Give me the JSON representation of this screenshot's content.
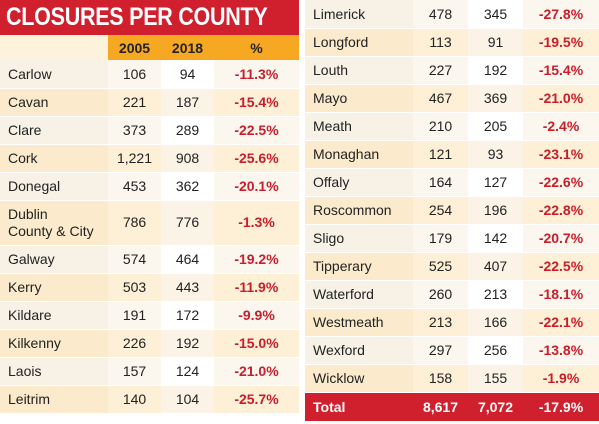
{
  "title": "CLOSURES PER COUNTY",
  "columns": [
    "",
    "2005",
    "2018",
    "%"
  ],
  "left_rows": [
    {
      "county": "Carlow",
      "y2005": "106",
      "y2018": "94",
      "pct": "-11.3%"
    },
    {
      "county": "Cavan",
      "y2005": "221",
      "y2018": "187",
      "pct": "-15.4%"
    },
    {
      "county": "Clare",
      "y2005": "373",
      "y2018": "289",
      "pct": "-22.5%"
    },
    {
      "county": "Cork",
      "y2005": "1,221",
      "y2018": "908",
      "pct": "-25.6%"
    },
    {
      "county": "Donegal",
      "y2005": "453",
      "y2018": "362",
      "pct": "-20.1%"
    },
    {
      "county": "Dublin",
      "county2": "County & City",
      "y2005": "786",
      "y2018": "776",
      "pct": "-1.3%"
    },
    {
      "county": "Galway",
      "y2005": "574",
      "y2018": "464",
      "pct": "-19.2%"
    },
    {
      "county": "Kerry",
      "y2005": "503",
      "y2018": "443",
      "pct": "-11.9%"
    },
    {
      "county": "Kildare",
      "y2005": "191",
      "y2018": "172",
      "pct": "-9.9%"
    },
    {
      "county": "Kilkenny",
      "y2005": "226",
      "y2018": "192",
      "pct": "-15.0%"
    },
    {
      "county": "Laois",
      "y2005": "157",
      "y2018": "124",
      "pct": "-21.0%"
    },
    {
      "county": "Leitrim",
      "y2005": "140",
      "y2018": "104",
      "pct": "-25.7%"
    }
  ],
  "right_rows": [
    {
      "county": "Limerick",
      "y2005": "478",
      "y2018": "345",
      "pct": "-27.8%"
    },
    {
      "county": "Longford",
      "y2005": "113",
      "y2018": "91",
      "pct": "-19.5%"
    },
    {
      "county": "Louth",
      "y2005": "227",
      "y2018": "192",
      "pct": "-15.4%"
    },
    {
      "county": "Mayo",
      "y2005": "467",
      "y2018": "369",
      "pct": "-21.0%"
    },
    {
      "county": "Meath",
      "y2005": "210",
      "y2018": "205",
      "pct": "-2.4%"
    },
    {
      "county": "Monaghan",
      "y2005": "121",
      "y2018": "93",
      "pct": "-23.1%"
    },
    {
      "county": "Offaly",
      "y2005": "164",
      "y2018": "127",
      "pct": "-22.6%"
    },
    {
      "county": "Roscommon",
      "y2005": "254",
      "y2018": "196",
      "pct": "-22.8%"
    },
    {
      "county": "Sligo",
      "y2005": "179",
      "y2018": "142",
      "pct": "-20.7%"
    },
    {
      "county": "Tipperary",
      "y2005": "525",
      "y2018": "407",
      "pct": "-22.5%"
    },
    {
      "county": "Waterford",
      "y2005": "260",
      "y2018": "213",
      "pct": "-18.1%"
    },
    {
      "county": "Westmeath",
      "y2005": "213",
      "y2018": "166",
      "pct": "-22.1%"
    },
    {
      "county": "Wexford",
      "y2005": "297",
      "y2018": "256",
      "pct": "-13.8%"
    },
    {
      "county": "Wicklow",
      "y2005": "158",
      "y2018": "155",
      "pct": "-1.9%"
    }
  ],
  "total": {
    "label": "Total",
    "y2005": "8,617",
    "y2018": "7,072",
    "pct": "-17.9%"
  },
  "colors": {
    "title_red": "#d0202e",
    "header_orange": "#f7a823",
    "percent_red": "#c81e2b"
  }
}
